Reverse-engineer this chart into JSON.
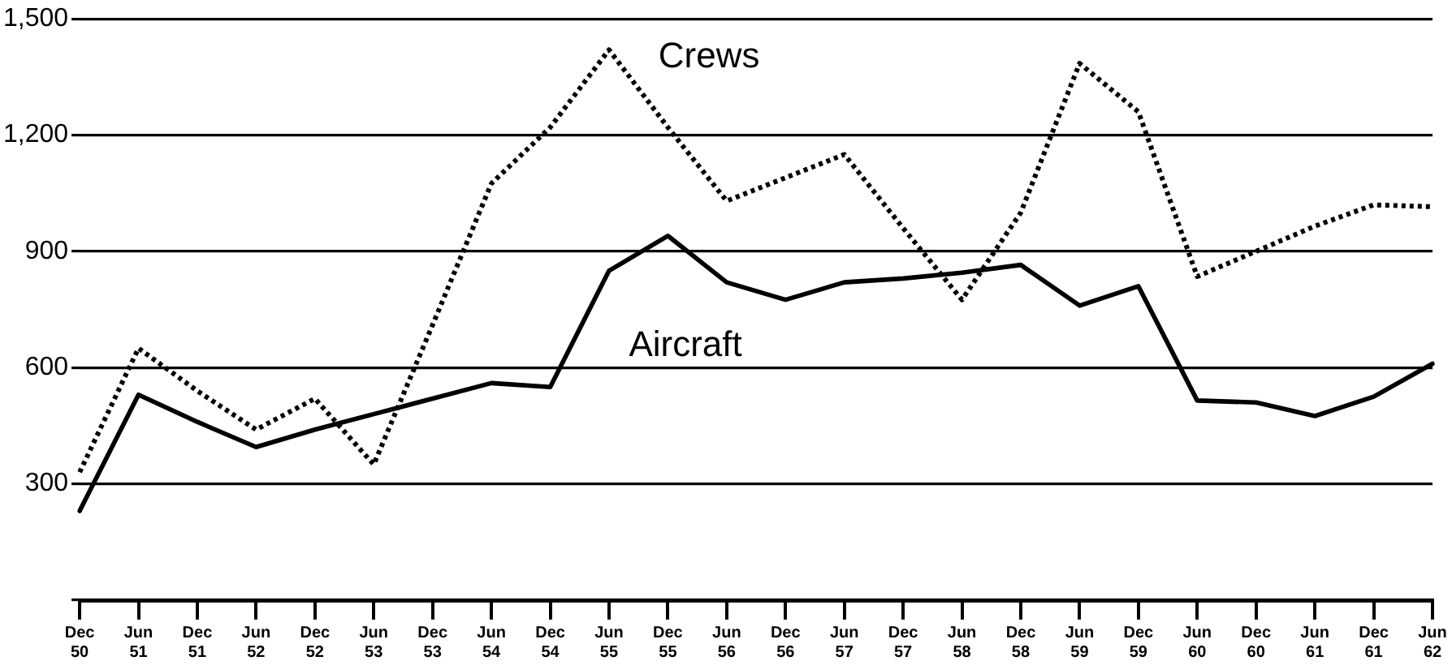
{
  "chart_data": {
    "type": "line",
    "categories": [
      "Dec 50",
      "Jun 51",
      "Dec 51",
      "Jun 52",
      "Dec 52",
      "Jun 53",
      "Dec 53",
      "Jun 54",
      "Dec 54",
      "Jun 55",
      "Dec 55",
      "Jun 56",
      "Dec 56",
      "Jun 57",
      "Dec 57",
      "Jun 58",
      "Dec 58",
      "Jun 59",
      "Dec 59",
      "Jun 60",
      "Dec 60",
      "Jun 61",
      "Dec 61",
      "Jun 62"
    ],
    "series": [
      {
        "name": "Crews",
        "color": "#000000",
        "line_style": "dotted",
        "values": [
          330,
          650,
          540,
          440,
          520,
          350,
          710,
          1075,
          1220,
          1420,
          1220,
          1030,
          1090,
          1150,
          960,
          775,
          1000,
          1385,
          1260,
          835,
          900,
          965,
          1020,
          1015
        ]
      },
      {
        "name": "Aircraft",
        "color": "#000000",
        "line_style": "solid",
        "values": [
          230,
          530,
          460,
          395,
          440,
          480,
          520,
          560,
          550,
          850,
          940,
          820,
          775,
          820,
          830,
          845,
          865,
          760,
          810,
          515,
          510,
          475,
          525,
          610
        ]
      }
    ],
    "ylim": [
      0,
      1500
    ],
    "yticks": [
      {
        "value": 0,
        "label": null
      },
      300,
      600,
      900,
      {
        "value": 1200,
        "label": "1,200"
      },
      {
        "value": 1500,
        "label": "1,500"
      }
    ],
    "grid": "y",
    "legend": false,
    "marker": "none"
  }
}
